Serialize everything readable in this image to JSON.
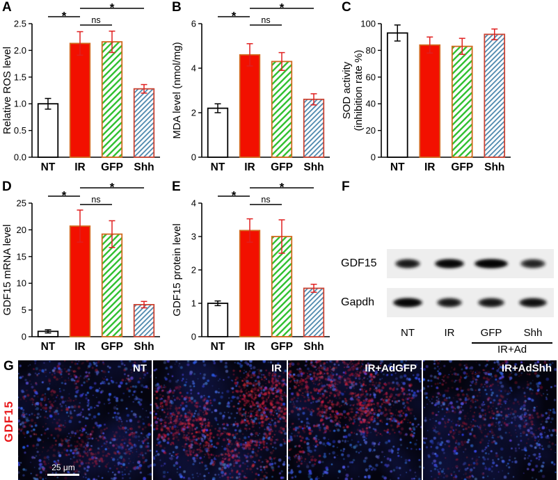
{
  "colors": {
    "red_bar": "#f21000",
    "bar_border": "#d2691e",
    "blue_bar_border": "#cc4433",
    "green_hatch": "#2ebf2e",
    "blue_hatch": "#4d87ad",
    "error_red": "#e02020",
    "gdf15_label_red": "#e8191c"
  },
  "chart_data": [
    {
      "panel": "A",
      "type": "bar",
      "categories": [
        "NT",
        "IR",
        "GFP",
        "Shh"
      ],
      "values": [
        1.0,
        2.13,
        2.16,
        1.28
      ],
      "errors": [
        0.1,
        0.22,
        0.2,
        0.08
      ],
      "bar_styles": [
        "white",
        "red",
        "green_hatch",
        "blue_hatch"
      ],
      "ylabel": "Relative ROS level",
      "ylim": [
        0,
        2.5
      ],
      "yticks": [
        0,
        0.5,
        1,
        1.5,
        2,
        2.5
      ],
      "ytick_labels": [
        "0.0",
        "0.5",
        "1.0",
        "1.5",
        "2.0",
        "2.5"
      ],
      "significance": [
        {
          "from": 1,
          "to": 3,
          "label": "*",
          "level": 0
        },
        {
          "from": 0,
          "to": 1,
          "label": "*",
          "level": 1
        },
        {
          "from": 1,
          "to": 2,
          "label": "ns",
          "level": 2
        }
      ]
    },
    {
      "panel": "B",
      "type": "bar",
      "categories": [
        "NT",
        "IR",
        "GFP",
        "Shh"
      ],
      "values": [
        2.2,
        4.6,
        4.3,
        2.6
      ],
      "errors": [
        0.2,
        0.5,
        0.4,
        0.25
      ],
      "bar_styles": [
        "white",
        "red",
        "green_hatch",
        "blue_hatch"
      ],
      "ylabel": "MDA level (nmol/mg)",
      "ylim": [
        0,
        6
      ],
      "yticks": [
        0,
        2,
        4,
        6
      ],
      "ytick_labels": [
        "0",
        "2",
        "4",
        "6"
      ],
      "significance": [
        {
          "from": 1,
          "to": 3,
          "label": "*",
          "level": 0
        },
        {
          "from": 0,
          "to": 1,
          "label": "*",
          "level": 1
        },
        {
          "from": 1,
          "to": 2,
          "label": "ns",
          "level": 2
        }
      ]
    },
    {
      "panel": "C",
      "type": "bar",
      "categories": [
        "NT",
        "IR",
        "GFP",
        "Shh"
      ],
      "values": [
        93,
        84,
        83,
        92
      ],
      "errors": [
        6,
        6,
        6,
        4
      ],
      "bar_styles": [
        "white",
        "red",
        "green_hatch",
        "blue_hatch"
      ],
      "ylabel": "SOD activity",
      "ylabel2": "(inhibition rate %)",
      "ylim": [
        0,
        100
      ],
      "yticks": [
        0,
        20,
        40,
        60,
        80,
        100
      ],
      "ytick_labels": [
        "0",
        "20",
        "40",
        "60",
        "80",
        "100"
      ],
      "significance": []
    },
    {
      "panel": "D",
      "type": "bar",
      "categories": [
        "NT",
        "IR",
        "GFP",
        "Shh"
      ],
      "values": [
        1.0,
        20.7,
        19.2,
        6.0
      ],
      "errors": [
        0.3,
        3.0,
        2.5,
        0.6
      ],
      "bar_styles": [
        "white",
        "red",
        "green_hatch",
        "blue_hatch"
      ],
      "ylabel": "GDF15 mRNA level",
      "ylim": [
        0,
        25
      ],
      "yticks": [
        0,
        5,
        10,
        15,
        20,
        25
      ],
      "ytick_labels": [
        "0",
        "5",
        "10",
        "15",
        "20",
        "25"
      ],
      "significance": [
        {
          "from": 1,
          "to": 3,
          "label": "*",
          "level": 0
        },
        {
          "from": 0,
          "to": 1,
          "label": "*",
          "level": 1
        },
        {
          "from": 1,
          "to": 2,
          "label": "ns",
          "level": 2
        }
      ]
    },
    {
      "panel": "E",
      "type": "bar",
      "categories": [
        "NT",
        "IR",
        "GFP",
        "Shh"
      ],
      "values": [
        1.0,
        3.18,
        3.0,
        1.45
      ],
      "errors": [
        0.07,
        0.35,
        0.5,
        0.12
      ],
      "bar_styles": [
        "white",
        "red",
        "green_hatch",
        "blue_hatch"
      ],
      "ylabel": "GDF15 protein level",
      "ylim": [
        0,
        4
      ],
      "yticks": [
        0,
        1,
        2,
        3,
        4
      ],
      "ytick_labels": [
        "0",
        "1",
        "2",
        "3",
        "4"
      ],
      "significance": [
        {
          "from": 1,
          "to": 3,
          "label": "*",
          "level": 0
        },
        {
          "from": 0,
          "to": 1,
          "label": "*",
          "level": 1
        },
        {
          "from": 1,
          "to": 2,
          "label": "ns",
          "level": 2
        }
      ]
    }
  ],
  "blot": {
    "label": "F",
    "lanes": [
      "NT",
      "IR",
      "GFP",
      "Shh"
    ],
    "group_label": "IR+Ad",
    "rows": [
      {
        "name": "GDF15",
        "intensities": [
          0.78,
          0.95,
          1.0,
          0.7
        ],
        "widths": [
          36,
          42,
          48,
          36
        ]
      },
      {
        "name": "Gapdh",
        "intensities": [
          0.95,
          0.78,
          0.8,
          0.85
        ],
        "widths": [
          42,
          36,
          38,
          40
        ]
      }
    ]
  },
  "microscopy": {
    "label": "G",
    "side_label": "GDF15",
    "scale_bar_label": "25 μm",
    "images": [
      {
        "label": "NT",
        "red_intensity": 0.45
      },
      {
        "label": "IR",
        "red_intensity": 1.0
      },
      {
        "label": "IR+AdGFP",
        "red_intensity": 0.85
      },
      {
        "label": "IR+AdShh",
        "red_intensity": 0.4
      }
    ]
  }
}
